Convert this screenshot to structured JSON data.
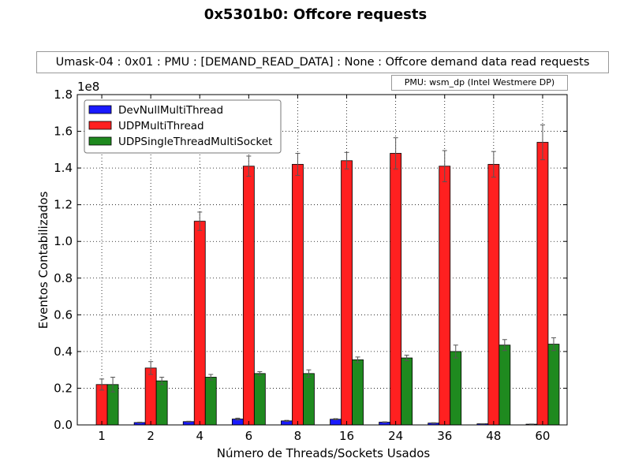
{
  "chart_data": {
    "type": "bar",
    "title": "0x5301b0: Offcore requests",
    "subtitle": "Umask-04 : 0x01 : PMU : [DEMAND_READ_DATA] : None : Offcore demand data read requests",
    "annotation": "PMU: wsm_dp (Intel Westmere DP)",
    "xlabel": "Número de Threads/Sockets Usados",
    "ylabel": "Eventos Contabilizados",
    "y_multiplier_label": "1e8",
    "ylim": [
      0,
      1.8
    ],
    "yticks": [
      "0.0",
      "0.2",
      "0.4",
      "0.6",
      "0.8",
      "1.0",
      "1.2",
      "1.4",
      "1.6",
      "1.8"
    ],
    "grid": true,
    "legend_position": "top-left",
    "categories": [
      "1",
      "2",
      "4",
      "6",
      "8",
      "16",
      "24",
      "36",
      "48",
      "60"
    ],
    "series": [
      {
        "name": "DevNullMultiThread",
        "color": "#1a1aff",
        "values": [
          0,
          0.013,
          0.018,
          0.032,
          0.022,
          0.031,
          0.015,
          0.01,
          0.006,
          0.004
        ],
        "errors": [
          0,
          0.002,
          0.002,
          0.005,
          0.003,
          0.003,
          0.002,
          0.002,
          0.001,
          0.001
        ]
      },
      {
        "name": "UDPMultiThread",
        "color": "#ff2020",
        "values": [
          0.22,
          0.31,
          1.11,
          1.41,
          1.42,
          1.44,
          1.48,
          1.41,
          1.42,
          1.54
        ],
        "errors": [
          0.03,
          0.035,
          0.05,
          0.055,
          0.06,
          0.045,
          0.085,
          0.085,
          0.07,
          0.095
        ]
      },
      {
        "name": "UDPSingleThreadMultiSocket",
        "color": "#1f8a1f",
        "values": [
          0.22,
          0.24,
          0.26,
          0.28,
          0.28,
          0.355,
          0.365,
          0.4,
          0.435,
          0.44
        ],
        "errors": [
          0.04,
          0.02,
          0.015,
          0.01,
          0.02,
          0.015,
          0.015,
          0.035,
          0.03,
          0.035
        ]
      }
    ]
  }
}
